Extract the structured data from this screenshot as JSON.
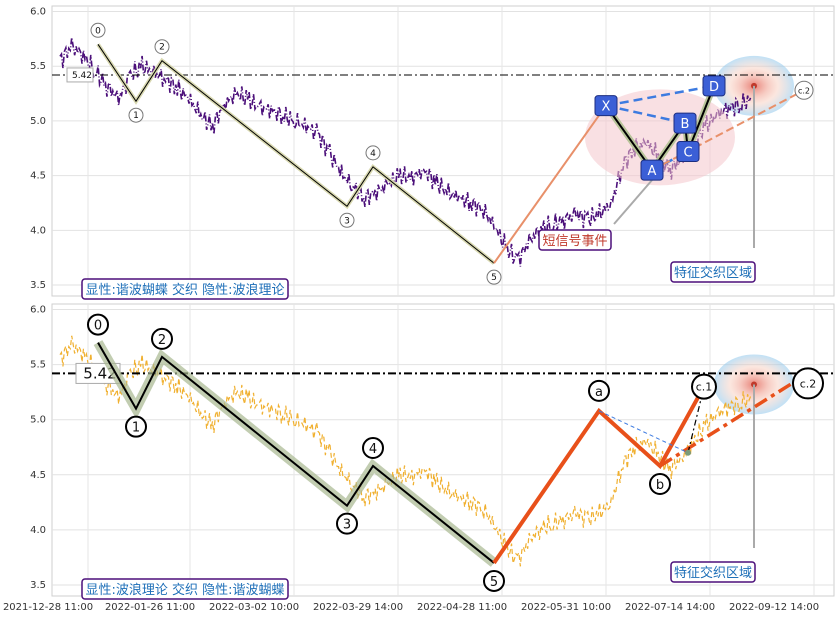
{
  "chart_data": [
    {
      "type": "line",
      "panel": "top",
      "ylim": [
        3.4,
        6.05
      ],
      "yticks": [
        "6.0",
        "5.5",
        "5.0",
        "4.5",
        "4.0",
        "3.5"
      ],
      "yticks_val": [
        6.0,
        5.5,
        5.0,
        4.5,
        4.0,
        3.5
      ],
      "hline_value": 5.42,
      "hline_label": "5.42",
      "legend_text": "显性:谐波蝴蝶 交织 隐性:波浪理论",
      "callout_text": "短信号事件",
      "zone_text": "特征交织区域",
      "series": [
        {
          "values": [
            5.55,
            5.68,
            5.6,
            5.45,
            5.32,
            5.2,
            5.42,
            5.5,
            5.45,
            5.38,
            5.3,
            5.2,
            5.05,
            4.95,
            5.15,
            5.25,
            5.2,
            5.12,
            5.1,
            5.05,
            5.0,
            4.95,
            4.88,
            4.7,
            4.52,
            4.4,
            4.3,
            4.35,
            4.42,
            4.5,
            4.48,
            4.55,
            4.45,
            4.35,
            4.3,
            4.25,
            4.2,
            4.05,
            3.85,
            3.72,
            3.9,
            4.02,
            4.05,
            4.1,
            4.15,
            4.1,
            4.15,
            4.25,
            4.6,
            4.75,
            4.8,
            4.68,
            4.55,
            4.65,
            4.8,
            4.95,
            5.05,
            5.12,
            5.15,
            5.2
          ]
        }
      ],
      "wave_points": {
        "labels": [
          "0",
          "1",
          "2",
          "3",
          "4",
          "5"
        ],
        "values": [
          5.7,
          5.18,
          5.55,
          4.22,
          4.58,
          3.7
        ]
      },
      "harmonic": {
        "labels": [
          "X",
          "A",
          "B",
          "C",
          "D",
          "c.2"
        ],
        "values": [
          5.14,
          4.55,
          4.98,
          4.72,
          5.32,
          5.28
        ]
      }
    },
    {
      "type": "line",
      "panel": "bottom",
      "ylim": [
        3.4,
        6.05
      ],
      "yticks": [
        "6.0",
        "5.5",
        "5.0",
        "4.5",
        "4.0",
        "3.5"
      ],
      "yticks_val": [
        6.0,
        5.5,
        5.0,
        4.5,
        4.0,
        3.5
      ],
      "hline_value": 5.42,
      "hline_label": "5.42",
      "legend_text": "显性:波浪理论 交织 隐性:谐波蝴蝶",
      "zone_text": "特征交织区域",
      "xticks": [
        "2021-12-28 11:00",
        "2022-01-26 11:00",
        "2022-03-02 10:00",
        "2022-03-29 14:00",
        "2022-04-28 11:00",
        "2022-05-31 10:00",
        "2022-07-14 14:00",
        "2022-09-12 14:00"
      ],
      "series": [
        {
          "values": [
            5.55,
            5.68,
            5.6,
            5.45,
            5.32,
            5.2,
            5.42,
            5.5,
            5.45,
            5.38,
            5.3,
            5.2,
            5.05,
            4.95,
            5.15,
            5.25,
            5.2,
            5.12,
            5.1,
            5.05,
            5.0,
            4.95,
            4.88,
            4.7,
            4.52,
            4.4,
            4.3,
            4.35,
            4.42,
            4.5,
            4.48,
            4.55,
            4.45,
            4.35,
            4.3,
            4.25,
            4.2,
            4.05,
            3.85,
            3.72,
            3.9,
            4.02,
            4.05,
            4.1,
            4.15,
            4.1,
            4.15,
            4.25,
            4.6,
            4.75,
            4.8,
            4.68,
            4.55,
            4.65,
            4.8,
            4.95,
            5.05,
            5.12,
            5.15,
            5.2
          ]
        }
      ],
      "wave_points": {
        "labels": [
          "0",
          "1",
          "2",
          "3",
          "4",
          "5"
        ],
        "values": [
          5.7,
          5.1,
          5.57,
          4.22,
          4.58,
          3.7
        ]
      },
      "correction": {
        "labels": [
          "a",
          "b",
          "c.1",
          "c.2"
        ],
        "values": [
          5.08,
          4.58,
          5.3,
          5.42
        ]
      }
    }
  ],
  "colors": {
    "top_series": "#4b0f7a",
    "bottom_series": "#f0b030",
    "wave": "#000000",
    "wave_shadow": "#a8b890",
    "orange": "#e8501a",
    "blue_dash": "#3d7be0",
    "box_blue": "#3b5fd6",
    "legend_border": "#4b0f7a"
  }
}
